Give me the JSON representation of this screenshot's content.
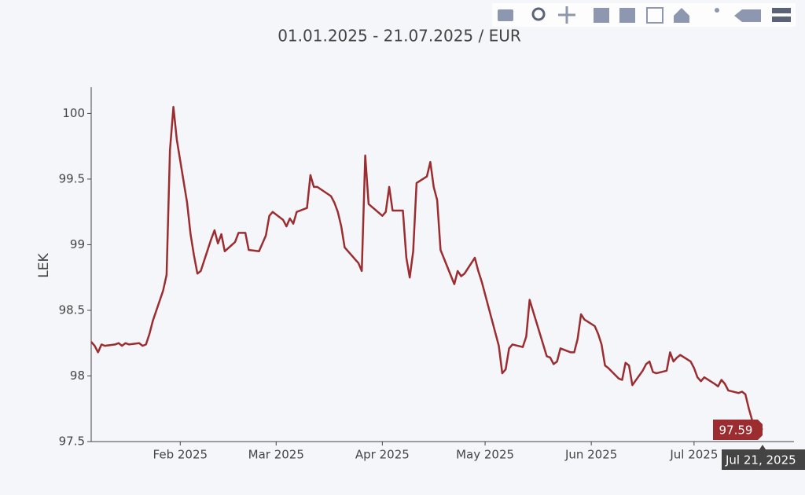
{
  "chart_data": {
    "type": "line",
    "title": "01.01.2025 - 21.07.2025 / EUR",
    "y_label": "LEK",
    "x": [
      "2025-01-06",
      "2025-01-07",
      "2025-01-08",
      "2025-01-09",
      "2025-01-10",
      "2025-01-13",
      "2025-01-14",
      "2025-01-15",
      "2025-01-16",
      "2025-01-17",
      "2025-01-20",
      "2025-01-21",
      "2025-01-22",
      "2025-01-23",
      "2025-01-24",
      "2025-01-27",
      "2025-01-28",
      "2025-01-29",
      "2025-01-30",
      "2025-01-31",
      "2025-02-03",
      "2025-02-04",
      "2025-02-05",
      "2025-02-06",
      "2025-02-07",
      "2025-02-10",
      "2025-02-11",
      "2025-02-12",
      "2025-02-13",
      "2025-02-14",
      "2025-02-17",
      "2025-02-18",
      "2025-02-20",
      "2025-02-21",
      "2025-02-24",
      "2025-02-26",
      "2025-02-27",
      "2025-02-28",
      "2025-03-03",
      "2025-03-04",
      "2025-03-05",
      "2025-03-06",
      "2025-03-07",
      "2025-03-10",
      "2025-03-11",
      "2025-03-12",
      "2025-03-13",
      "2025-03-17",
      "2025-03-18",
      "2025-03-19",
      "2025-03-20",
      "2025-03-21",
      "2025-03-24",
      "2025-03-25",
      "2025-03-26",
      "2025-03-27",
      "2025-03-28",
      "2025-04-01",
      "2025-04-02",
      "2025-04-03",
      "2025-04-04",
      "2025-04-07",
      "2025-04-08",
      "2025-04-09",
      "2025-04-10",
      "2025-04-11",
      "2025-04-14",
      "2025-04-15",
      "2025-04-16",
      "2025-04-17",
      "2025-04-18",
      "2025-04-22",
      "2025-04-23",
      "2025-04-24",
      "2025-04-25",
      "2025-04-28",
      "2025-04-29",
      "2025-04-30",
      "2025-05-05",
      "2025-05-06",
      "2025-05-07",
      "2025-05-08",
      "2025-05-09",
      "2025-05-12",
      "2025-05-13",
      "2025-05-14",
      "2025-05-19",
      "2025-05-20",
      "2025-05-21",
      "2025-05-22",
      "2025-05-23",
      "2025-05-26",
      "2025-05-27",
      "2025-05-28",
      "2025-05-29",
      "2025-05-30",
      "2025-06-02",
      "2025-06-03",
      "2025-06-04",
      "2025-06-05",
      "2025-06-06",
      "2025-06-09",
      "2025-06-10",
      "2025-06-11",
      "2025-06-12",
      "2025-06-13",
      "2025-06-16",
      "2025-06-17",
      "2025-06-18",
      "2025-06-19",
      "2025-06-20",
      "2025-06-23",
      "2025-06-24",
      "2025-06-25",
      "2025-06-26",
      "2025-06-27",
      "2025-06-30",
      "2025-07-01",
      "2025-07-02",
      "2025-07-03",
      "2025-07-04",
      "2025-07-07",
      "2025-07-08",
      "2025-07-09",
      "2025-07-10",
      "2025-07-11",
      "2025-07-14",
      "2025-07-15",
      "2025-07-16",
      "2025-07-17",
      "2025-07-18",
      "2025-07-21"
    ],
    "series": [
      {
        "name": "EUR",
        "color": "#9b2d30",
        "values": [
          98.26,
          98.23,
          98.18,
          98.24,
          98.23,
          98.24,
          98.25,
          98.23,
          98.25,
          98.24,
          98.25,
          98.23,
          98.24,
          98.32,
          98.42,
          98.65,
          98.77,
          99.72,
          100.05,
          99.8,
          99.32,
          99.08,
          98.92,
          98.78,
          98.8,
          99.04,
          99.11,
          99.01,
          99.08,
          98.95,
          99.02,
          99.09,
          99.09,
          98.96,
          98.95,
          99.07,
          99.22,
          99.25,
          99.19,
          99.14,
          99.2,
          99.16,
          99.25,
          99.28,
          99.53,
          99.44,
          99.44,
          99.37,
          99.32,
          99.25,
          99.14,
          98.98,
          98.89,
          98.86,
          98.8,
          99.68,
          99.31,
          99.22,
          99.25,
          99.44,
          99.26,
          99.26,
          98.9,
          98.75,
          98.95,
          99.47,
          99.52,
          99.63,
          99.44,
          99.34,
          98.96,
          98.7,
          98.8,
          98.76,
          98.78,
          98.9,
          98.8,
          98.72,
          98.23,
          98.02,
          98.05,
          98.21,
          98.24,
          98.22,
          98.3,
          98.58,
          98.15,
          98.14,
          98.09,
          98.11,
          98.21,
          98.18,
          98.18,
          98.28,
          98.47,
          98.43,
          98.38,
          98.32,
          98.24,
          98.08,
          98.06,
          97.98,
          97.97,
          98.1,
          98.08,
          97.93,
          98.04,
          98.09,
          98.11,
          98.03,
          98.02,
          98.04,
          98.18,
          98.11,
          98.14,
          98.16,
          98.11,
          98.06,
          97.99,
          97.96,
          97.99,
          97.94,
          97.92,
          97.97,
          97.94,
          97.89,
          97.87,
          97.88,
          97.86,
          97.75,
          97.66,
          97.59
        ]
      }
    ],
    "xlim": [
      "2025-01-06",
      "2025-07-21"
    ],
    "xticks": [
      {
        "value": "2025-02-01",
        "label": "Feb 2025"
      },
      {
        "value": "2025-03-01",
        "label": "Mar 2025"
      },
      {
        "value": "2025-04-01",
        "label": "Apr 2025"
      },
      {
        "value": "2025-05-01",
        "label": "May 2025"
      },
      {
        "value": "2025-06-01",
        "label": "Jun 2025"
      },
      {
        "value": "2025-07-01",
        "label": "Jul 2025"
      }
    ],
    "ylim": [
      97.5,
      100.2
    ],
    "yticks": [
      97.5,
      98,
      98.5,
      99,
      99.5,
      100
    ],
    "grid": false,
    "hover": {
      "y": "97.59",
      "x": "Jul 21, 2025"
    }
  }
}
